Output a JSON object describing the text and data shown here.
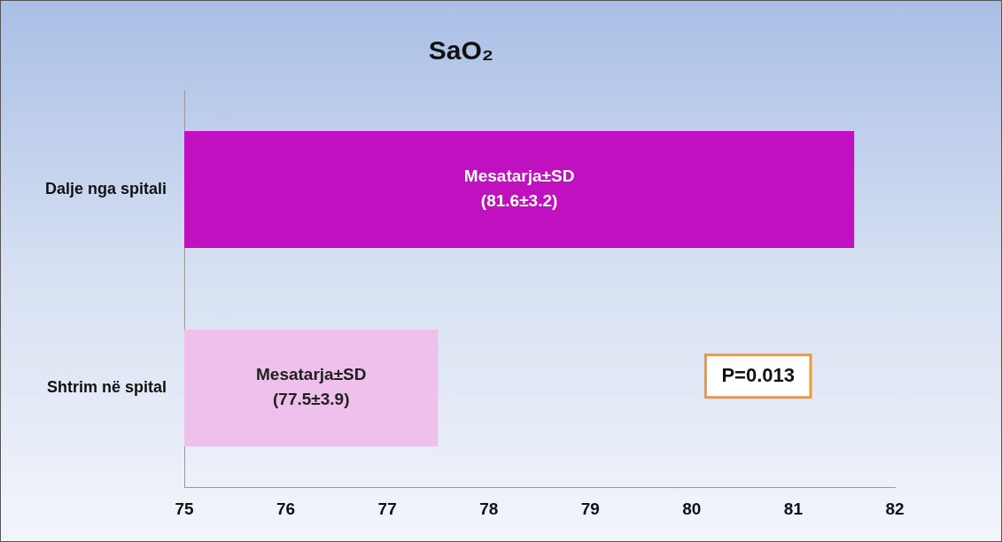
{
  "chart_data": {
    "type": "bar",
    "orientation": "horizontal",
    "title": "SaO₂",
    "categories": [
      "Dalje nga spitali",
      "Shtrim në spital"
    ],
    "values": [
      81.6,
      77.5
    ],
    "colors": [
      "#c010c0",
      "#f0c0ec"
    ],
    "value_labels": [
      "Mesatarja±SD\n(81.6±3.2)",
      "Mesatarja±SD\n(77.5±3.9)"
    ],
    "xlim": [
      75,
      82
    ],
    "xticks": [
      75,
      76,
      77,
      78,
      79,
      80,
      81,
      82
    ],
    "grid": false,
    "legend": false,
    "annotations": [
      "P=0.013"
    ]
  }
}
